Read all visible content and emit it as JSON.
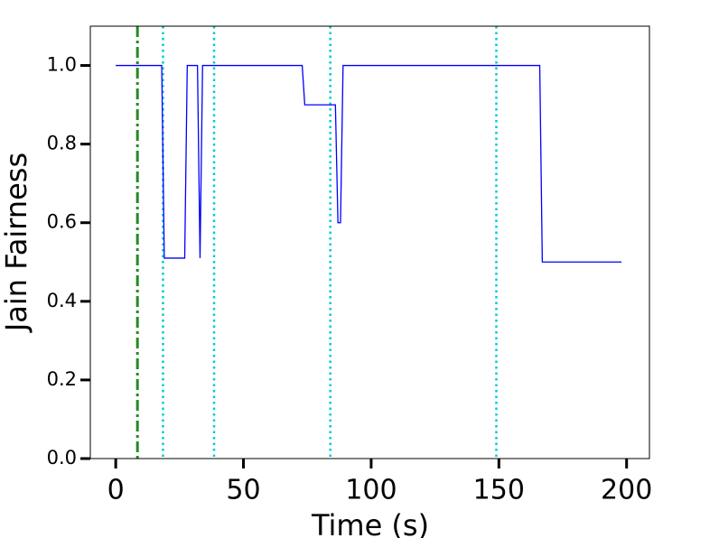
{
  "chart_data": {
    "type": "line",
    "xlabel": "Time (s)",
    "ylabel": "Jain Fairness",
    "series": [
      {
        "color": "#0000ff",
        "x": [
          0,
          18,
          19,
          27,
          28,
          32,
          33,
          34,
          73,
          74,
          86,
          87,
          88,
          89,
          166,
          167,
          198
        ],
        "values": [
          1.0,
          1.0,
          0.51,
          0.51,
          1.0,
          1.0,
          0.51,
          1.0,
          1.0,
          0.9,
          0.9,
          0.6,
          0.6,
          1.0,
          1.0,
          0.5,
          0.5
        ]
      }
    ],
    "vlines": [
      {
        "x": 8.5,
        "color": "#228b22",
        "style": "dashdot"
      },
      {
        "x": 18.5,
        "color": "#00cccc",
        "style": "dotted"
      },
      {
        "x": 38.5,
        "color": "#00cccc",
        "style": "dotted"
      },
      {
        "x": 84,
        "color": "#00cccc",
        "style": "dotted"
      },
      {
        "x": 149,
        "color": "#00cccc",
        "style": "dotted"
      }
    ],
    "xlim": [
      -9.95,
      208.95
    ],
    "ylim": [
      0,
      1.1
    ],
    "xticks": [
      0,
      50,
      100,
      150,
      200
    ],
    "yticks": [
      {
        "value": 0,
        "label": "0.0"
      },
      {
        "value": 0.2,
        "label": "0.2"
      },
      {
        "value": 0.4,
        "label": "0.4"
      },
      {
        "value": 0.6,
        "label": "0.6"
      },
      {
        "value": 0.8,
        "label": "0.8"
      },
      {
        "value": 1.0,
        "label": "1.0"
      }
    ]
  }
}
